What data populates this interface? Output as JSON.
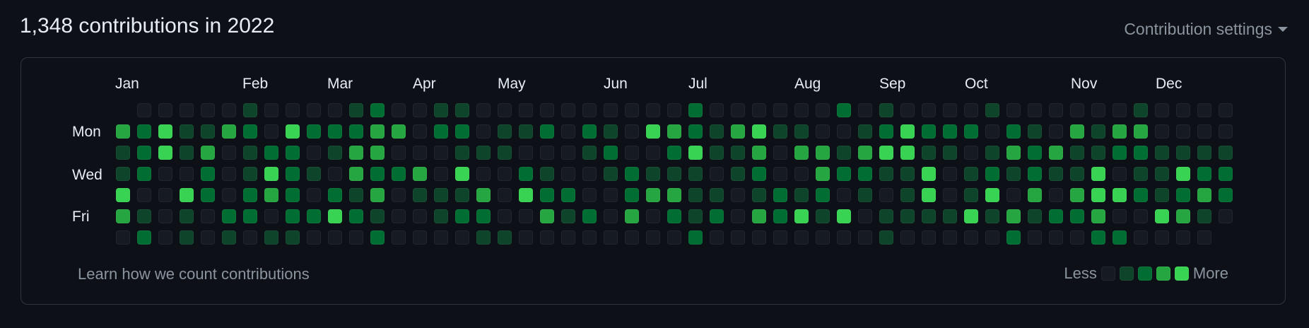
{
  "header": {
    "title": "1,348 contributions in 2022",
    "settings_label": "Contribution settings"
  },
  "calendar": {
    "months": [
      "Jan",
      "Feb",
      "Mar",
      "Apr",
      "May",
      "Jun",
      "Jul",
      "Aug",
      "Sep",
      "Oct",
      "Nov",
      "Dec"
    ],
    "days": [
      "Mon",
      "Wed",
      "Fri"
    ],
    "level_colors": [
      "#161b22",
      "#0e4429",
      "#006d32",
      "#26a641",
      "#39d353"
    ]
  },
  "footer": {
    "learn_link": "Learn how we count contributions",
    "legend_less": "Less",
    "legend_more": "More"
  }
}
